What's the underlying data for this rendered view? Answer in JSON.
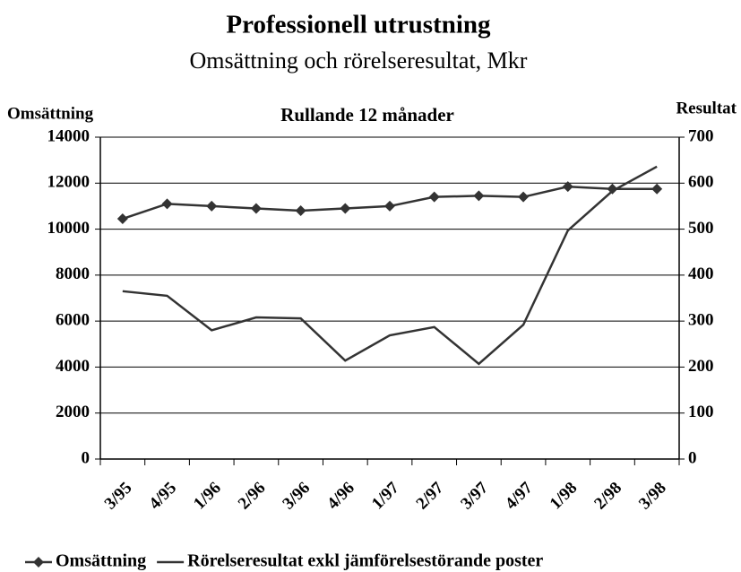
{
  "chart_data": {
    "type": "line",
    "title": "Professionell utrustning",
    "subtitle": "Omsättning och rörelseresultat, Mkr",
    "annotation": "Rullande 12 månader",
    "y_label": "Omsättning",
    "y2_label": "Resultat",
    "categories": [
      "3/95",
      "4/95",
      "1/96",
      "2/96",
      "3/96",
      "4/96",
      "1/97",
      "2/97",
      "3/97",
      "4/97",
      "1/98",
      "2/98",
      "3/98"
    ],
    "series": [
      {
        "name": "Omsättning",
        "color": "#333333",
        "marker": "diamond",
        "values": [
          10450,
          11100,
          11000,
          10900,
          10800,
          10900,
          11000,
          11400,
          11450,
          11400,
          11850,
          11750,
          11750
        ]
      },
      {
        "name": "Rörelseresultat exkl jämförelsestörande poster",
        "color": "#333333",
        "axis": "y2",
        "values": [
          365,
          355,
          280,
          308,
          306,
          214,
          269,
          287,
          207,
          292,
          497,
          583,
          636
        ]
      }
    ],
    "ylim": [
      0,
      14000
    ],
    "yticks": [
      0,
      2000,
      4000,
      6000,
      8000,
      10000,
      12000,
      14000
    ],
    "y2lim": [
      0,
      700
    ],
    "y2ticks": [
      0,
      100,
      200,
      300,
      400,
      500,
      600,
      700
    ],
    "grid": true,
    "legend": "bottom"
  }
}
